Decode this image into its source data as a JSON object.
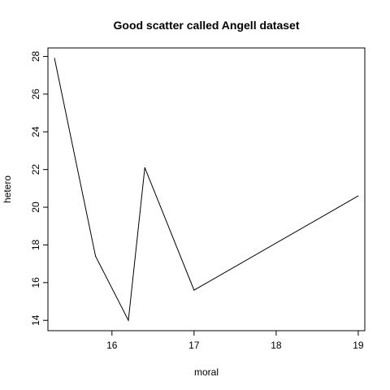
{
  "chart_data": {
    "type": "line",
    "title": "Good scatter called Angell dataset",
    "xlabel": "moral",
    "ylabel": "hetero",
    "x": [
      15.3,
      15.8,
      16.2,
      16.4,
      17.0,
      19.0
    ],
    "y": [
      27.9,
      17.4,
      14.0,
      22.1,
      15.6,
      20.6
    ],
    "xlim": [
      15.22,
      19.08
    ],
    "ylim": [
      13.45,
      28.45
    ],
    "x_ticks": [
      16,
      17,
      18,
      19
    ],
    "y_ticks": [
      14,
      16,
      18,
      20,
      22,
      24,
      26,
      28
    ],
    "grid": false,
    "line_color": "#000000"
  }
}
